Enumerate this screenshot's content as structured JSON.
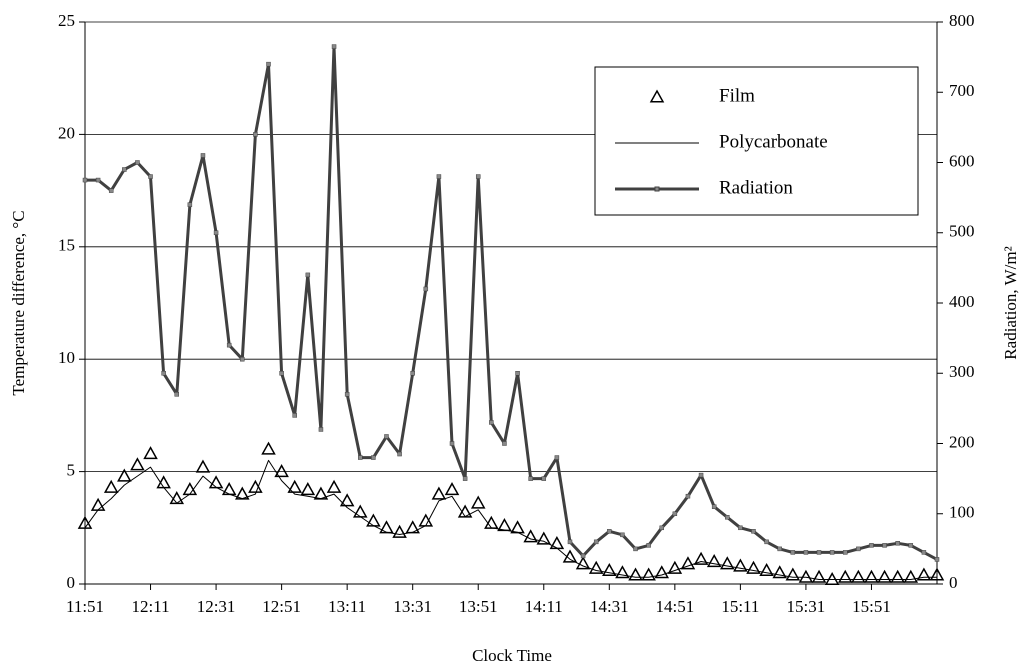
{
  "chart_data": {
    "type": "line",
    "x_label": "Clock Time",
    "y_label": "Temperature difference, °C",
    "y2_label": "Radiation, W/m²",
    "categories": [
      "11:51",
      null,
      null,
      null,
      null,
      "12:11",
      null,
      null,
      null,
      null,
      "12:31",
      null,
      null,
      null,
      null,
      "12:51",
      null,
      null,
      null,
      null,
      "13:11",
      null,
      null,
      null,
      null,
      "13:31",
      null,
      null,
      null,
      null,
      "13:51",
      null,
      null,
      null,
      null,
      "14:11",
      null,
      null,
      null,
      null,
      "14:31",
      null,
      null,
      null,
      null,
      "14:51",
      null,
      null,
      null,
      null,
      "15:11",
      null,
      null,
      null,
      null,
      "15:31",
      null,
      null,
      null,
      null,
      "15:51",
      null,
      null,
      null,
      null,
      null
    ],
    "series": [
      {
        "name": "Film",
        "color": "#000000",
        "marker": "triangle",
        "line": false,
        "values": [
          2.7,
          3.5,
          4.3,
          4.8,
          5.3,
          5.8,
          4.5,
          3.8,
          4.2,
          5.2,
          4.5,
          4.2,
          4.0,
          4.3,
          6.0,
          5.0,
          4.3,
          4.2,
          4.0,
          4.3,
          3.7,
          3.2,
          2.8,
          2.5,
          2.3,
          2.5,
          2.8,
          4.0,
          4.2,
          3.2,
          3.6,
          2.7,
          2.6,
          2.5,
          2.1,
          2.0,
          1.8,
          1.2,
          0.9,
          0.7,
          0.6,
          0.5,
          0.4,
          0.4,
          0.5,
          0.7,
          0.9,
          1.1,
          1.0,
          0.9,
          0.8,
          0.7,
          0.6,
          0.5,
          0.4,
          0.3,
          0.3,
          0.2,
          0.3,
          0.3,
          0.3,
          0.3,
          0.3,
          0.3,
          0.4,
          0.4
        ]
      },
      {
        "name": "Polycarbonate",
        "color": "#000000",
        "line": true,
        "line_width": 1,
        "values": [
          2.5,
          3.3,
          3.8,
          4.4,
          4.8,
          5.2,
          4.3,
          3.6,
          4.0,
          4.8,
          4.3,
          4.0,
          3.8,
          4.0,
          5.5,
          4.6,
          4.0,
          3.9,
          3.8,
          4.0,
          3.4,
          3.0,
          2.6,
          2.3,
          2.2,
          2.3,
          2.6,
          3.7,
          3.9,
          3.0,
          3.3,
          2.5,
          2.4,
          2.3,
          2.0,
          1.9,
          1.6,
          1.1,
          0.8,
          0.6,
          0.5,
          0.4,
          0.3,
          0.3,
          0.4,
          0.6,
          0.8,
          1.0,
          0.9,
          0.8,
          0.7,
          0.6,
          0.5,
          0.4,
          0.3,
          0.3,
          0.2,
          0.2,
          0.2,
          0.2,
          0.2,
          0.2,
          0.2,
          0.2,
          0.3,
          0.3
        ]
      },
      {
        "name": "Radiation",
        "color": "#404040",
        "line": true,
        "line_width": 3,
        "marker": "square",
        "axis": "y2",
        "values": [
          575,
          575,
          560,
          590,
          600,
          580,
          300,
          270,
          540,
          610,
          500,
          340,
          320,
          640,
          740,
          300,
          240,
          440,
          220,
          765,
          270,
          180,
          180,
          210,
          185,
          300,
          420,
          580,
          200,
          150,
          580,
          230,
          200,
          300,
          150,
          150,
          180,
          60,
          40,
          60,
          75,
          70,
          50,
          55,
          80,
          100,
          125,
          155,
          110,
          95,
          80,
          75,
          60,
          50,
          45,
          45,
          45,
          45,
          45,
          50,
          55,
          55,
          58,
          55,
          45,
          35
        ]
      }
    ],
    "ylim": [
      0,
      25
    ],
    "yticks": [
      0,
      5,
      10,
      15,
      20,
      25
    ],
    "y2lim": [
      0,
      800
    ],
    "y2ticks": [
      0,
      100,
      200,
      300,
      400,
      500,
      600,
      700,
      800
    ],
    "grid": true,
    "legend": "upper right"
  }
}
